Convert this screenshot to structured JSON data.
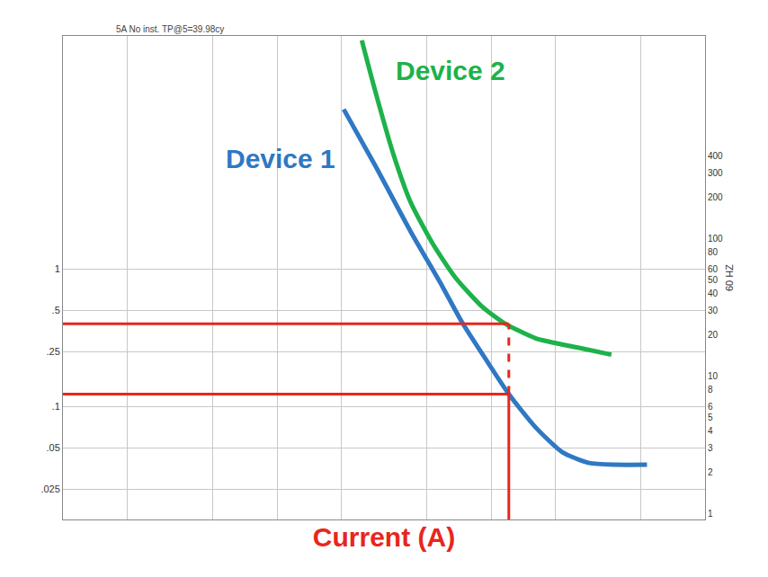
{
  "chart_data": {
    "type": "line",
    "subtitle": "5A No inst. TP@5=39.98cy",
    "x_label": "Current (A)",
    "y2_label": "60 HZ",
    "log": true,
    "grid": true,
    "tick_labels": "y",
    "xlim": [
      10,
      10000
    ],
    "xticks": [
      20,
      50,
      100,
      200,
      500,
      1000,
      2000,
      5000
    ],
    "ylim": [
      0.015,
      50
    ],
    "yticks": [
      {
        "value": 1,
        "label": "1"
      },
      {
        "value": 0.5,
        "label": ".5"
      },
      {
        "value": 0.25,
        "label": ".25"
      },
      {
        "value": 0.1,
        "label": ".1"
      },
      {
        "value": 0.05,
        "label": ".05"
      },
      {
        "value": 0.025,
        "label": ".025"
      }
    ],
    "y2lim": [
      0.9,
      3000
    ],
    "y2ticks": [
      400,
      300,
      200,
      100,
      80,
      60,
      50,
      40,
      30,
      20,
      10,
      8,
      6,
      5,
      4,
      3,
      2,
      1
    ],
    "series": [
      {
        "name": "Device 1",
        "color": "#2f78c4",
        "x": [
          205,
          287,
          422,
          590,
          736,
          953,
          1211,
          1614,
          2154,
          2873,
          3831,
          5356
        ],
        "values": [
          14.6,
          5.72,
          1.87,
          0.757,
          0.404,
          0.216,
          0.123,
          0.0705,
          0.0464,
          0.0387,
          0.0376,
          0.0376
        ]
      },
      {
        "name": "Device 2",
        "color": "#1db24a",
        "x": [
          249,
          287,
          348,
          422,
          536,
          681,
          908,
          1155,
          1614,
          2610,
          3652
        ],
        "values": [
          46.4,
          20.1,
          7.05,
          3.05,
          1.52,
          0.87,
          0.534,
          0.404,
          0.314,
          0.266,
          0.238
        ]
      }
    ],
    "reference_lines": {
      "x": 1211,
      "y": [
        0.4,
        0.123
      ],
      "color": "#e8261c"
    }
  }
}
